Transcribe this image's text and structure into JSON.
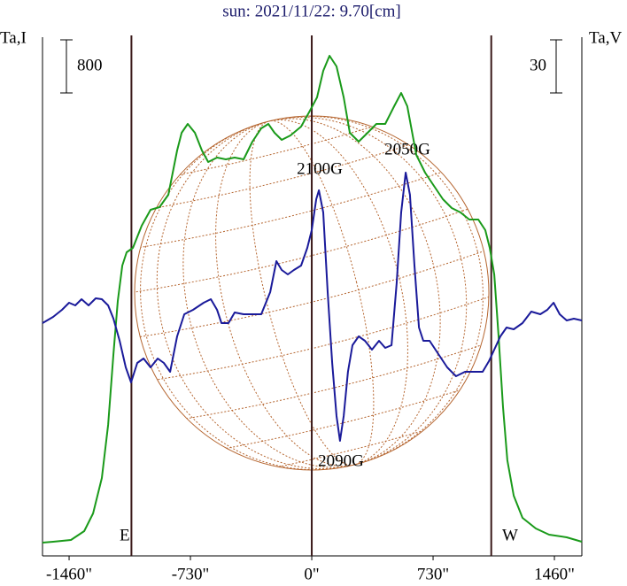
{
  "chart_data": {
    "type": "line",
    "title": "sun: 2021/11/22: 9.70[cm]",
    "y_label": "Ta,I",
    "y2_label": "Ta,V",
    "xlim": [
      -1620,
      1625
    ],
    "ylim": [
      -200,
      7640
    ],
    "y2lim": [
      -131.5,
      162.5
    ],
    "xticks": [
      {
        "value": -1460,
        "label": "-1460\""
      },
      {
        "value": -730,
        "label": "-730\""
      },
      {
        "value": 0,
        "label": "0\""
      },
      {
        "value": 730,
        "label": "730\""
      },
      {
        "value": 1460,
        "label": "1460\""
      }
    ],
    "scale_bars": {
      "y": 800,
      "y2": 30
    },
    "vlines": [
      -1085,
      0,
      1080
    ],
    "limb_labels": [
      "E",
      "W"
    ],
    "annotations": [
      "2100G",
      "2050G",
      "2090G"
    ],
    "series": [
      {
        "name": "I",
        "color": "#1a9a1a",
        "x": [
          -1620,
          -1556,
          -1449,
          -1369,
          -1316,
          -1263,
          -1225,
          -1193,
          -1167,
          -1140,
          -1114,
          -1076,
          -1023,
          -970,
          -916,
          -863,
          -810,
          -783,
          -746,
          -703,
          -661,
          -623,
          -570,
          -517,
          -464,
          -410,
          -357,
          -304,
          -261,
          -224,
          -181,
          -128,
          -64,
          -11,
          32,
          69,
          107,
          149,
          192,
          229,
          282,
          336,
          389,
          442,
          496,
          538,
          575,
          629,
          682,
          735,
          789,
          842,
          895,
          948,
          1002,
          1044,
          1071,
          1098,
          1124,
          1151,
          1177,
          1215,
          1268,
          1348,
          1428,
          1534,
          1625
        ],
        "values": [
          0,
          13,
          40,
          173,
          440,
          973,
          1773,
          2840,
          3640,
          4173,
          4373,
          4440,
          4773,
          5013,
          5053,
          5240,
          5907,
          6173,
          6307,
          6173,
          5907,
          5733,
          5800,
          5773,
          5800,
          5773,
          6040,
          6240,
          6307,
          6173,
          6067,
          6133,
          6267,
          6507,
          6707,
          7107,
          7333,
          7173,
          6707,
          6173,
          6040,
          6173,
          6307,
          6307,
          6573,
          6773,
          6573,
          5840,
          5573,
          5373,
          5173,
          5040,
          4973,
          4867,
          4867,
          4707,
          4440,
          4040,
          3107,
          2040,
          1240,
          707,
          373,
          213,
          120,
          80,
          13
        ]
      },
      {
        "name": "V",
        "color": "#1a1a9a",
        "axis": "y2",
        "x": [
          -1620,
          -1556,
          -1503,
          -1460,
          -1423,
          -1385,
          -1343,
          -1300,
          -1263,
          -1225,
          -1193,
          -1156,
          -1119,
          -1087,
          -1050,
          -1012,
          -970,
          -927,
          -890,
          -852,
          -810,
          -767,
          -714,
          -650,
          -607,
          -570,
          -543,
          -501,
          -464,
          -410,
          -357,
          -304,
          -250,
          -213,
          -181,
          -144,
          -107,
          -64,
          -27,
          0,
          27,
          43,
          69,
          96,
          123,
          149,
          170,
          192,
          218,
          245,
          282,
          320,
          362,
          405,
          442,
          480,
          511,
          538,
          565,
          591,
          618,
          645,
          671,
          709,
          762,
          815,
          868,
          922,
          975,
          1028,
          1066,
          1098,
          1135,
          1172,
          1215,
          1268,
          1321,
          1375,
          1417,
          1455,
          1492,
          1534,
          1577,
          1625
        ],
        "values": [
          0,
          3.5,
          7.5,
          11.5,
          10,
          13.5,
          10,
          14,
          13.5,
          10,
          2.5,
          -10,
          -25,
          -33.5,
          -22.5,
          -20,
          -25,
          -20,
          -22.5,
          -27.5,
          -7.5,
          5,
          7.5,
          11.5,
          13.5,
          7.5,
          0,
          0,
          6,
          5,
          5,
          5,
          17.5,
          35,
          30,
          27.5,
          30,
          32.5,
          42.5,
          52.5,
          70,
          75,
          62.5,
          17.5,
          -22.5,
          -52.5,
          -66.5,
          -52.5,
          -27.5,
          -12.5,
          -7.5,
          -10,
          -15,
          -10,
          -14,
          -12.5,
          22.5,
          62.5,
          85,
          72.5,
          32.5,
          -2.5,
          -10,
          -10,
          -17.5,
          -25,
          -30,
          -27.5,
          -27.5,
          -27.5,
          -21.5,
          -15,
          -7.5,
          -2.5,
          -3.5,
          0,
          6.5,
          5,
          7.5,
          11.5,
          5,
          1.5,
          2.5,
          1.5
        ]
      }
    ]
  }
}
